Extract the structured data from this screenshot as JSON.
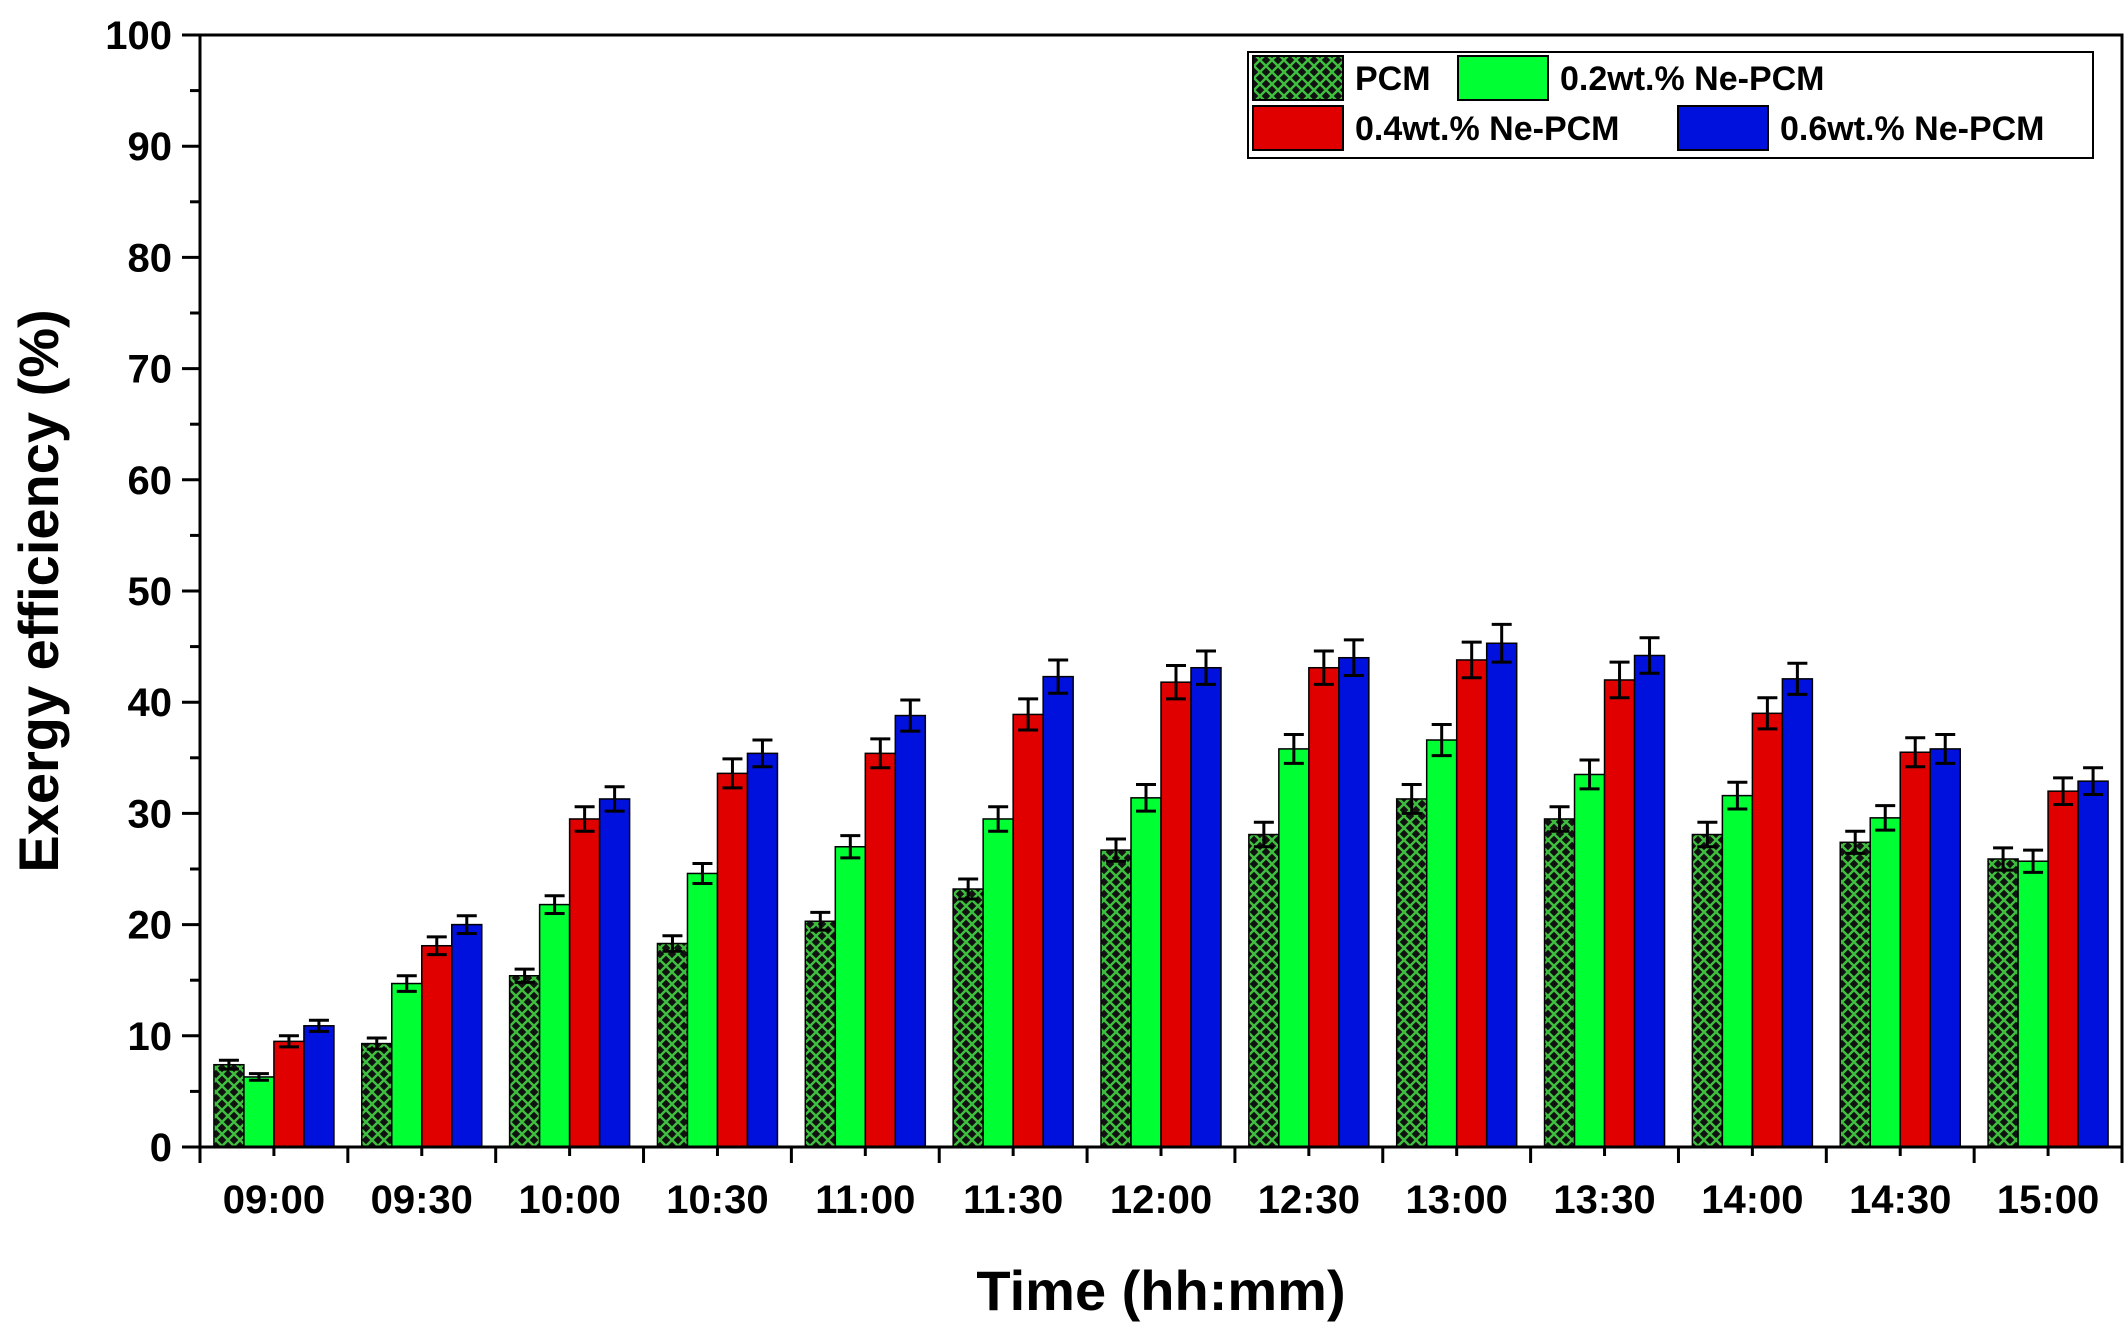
{
  "chart_data": {
    "type": "bar",
    "xlabel": "Time (hh:mm)",
    "ylabel": "Exergy efficiency (%)",
    "ylim": [
      0,
      100
    ],
    "yticks": [
      0,
      10,
      20,
      30,
      40,
      50,
      60,
      70,
      80,
      90,
      100
    ],
    "grid": false,
    "legend_position": "top-right",
    "categories": [
      "09:00",
      "09:30",
      "10:00",
      "10:30",
      "11:00",
      "11:30",
      "12:00",
      "12:30",
      "13:00",
      "13:30",
      "14:00",
      "14:30",
      "15:00"
    ],
    "series": [
      {
        "name": "PCM",
        "color": "#2e7d32",
        "pattern": "crosshatch",
        "values": [
          7.4,
          9.3,
          15.4,
          18.3,
          20.3,
          23.2,
          26.7,
          28.1,
          31.3,
          29.5,
          28.1,
          27.4,
          25.9
        ],
        "errors": [
          0.4,
          0.5,
          0.6,
          0.7,
          0.8,
          0.9,
          1.0,
          1.1,
          1.3,
          1.1,
          1.1,
          1.0,
          1.0
        ]
      },
      {
        "name": "0.2wt.% Ne-PCM",
        "color": "#00ff33",
        "pattern": "solid",
        "values": [
          6.3,
          14.7,
          21.8,
          24.6,
          27.0,
          29.5,
          31.4,
          35.8,
          36.6,
          33.5,
          31.6,
          29.6,
          25.7
        ],
        "errors": [
          0.3,
          0.7,
          0.8,
          0.9,
          1.0,
          1.1,
          1.2,
          1.3,
          1.4,
          1.3,
          1.2,
          1.1,
          1.0
        ]
      },
      {
        "name": "0.4wt.% Ne-PCM",
        "color": "#e00000",
        "pattern": "solid",
        "values": [
          9.5,
          18.1,
          29.5,
          33.6,
          35.4,
          38.9,
          41.8,
          43.1,
          43.8,
          42.0,
          39.0,
          35.5,
          32.0
        ],
        "errors": [
          0.5,
          0.8,
          1.1,
          1.3,
          1.3,
          1.4,
          1.5,
          1.5,
          1.6,
          1.6,
          1.4,
          1.3,
          1.2
        ]
      },
      {
        "name": "0.6wt.% Ne-PCM",
        "color": "#0010dd",
        "pattern": "solid",
        "values": [
          10.9,
          20.0,
          31.3,
          35.4,
          38.8,
          42.3,
          43.1,
          44.0,
          45.3,
          44.2,
          42.1,
          35.8,
          32.9
        ],
        "errors": [
          0.5,
          0.8,
          1.1,
          1.2,
          1.4,
          1.5,
          1.5,
          1.6,
          1.7,
          1.6,
          1.4,
          1.3,
          1.2
        ]
      }
    ]
  }
}
